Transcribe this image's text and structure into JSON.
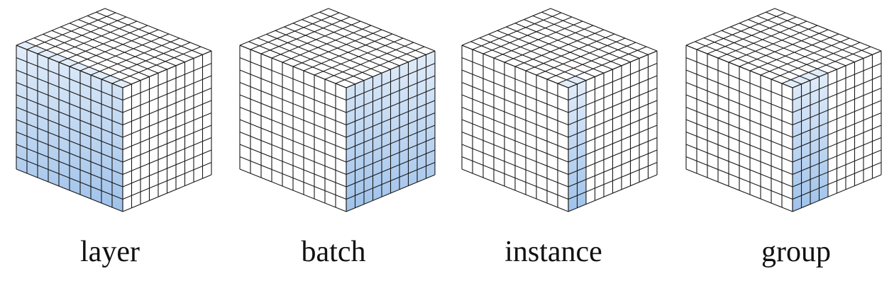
{
  "grid_size": 10,
  "colors": {
    "line": "#1a1a1a",
    "face": "#ffffff",
    "highlight_top": "#e2edfa",
    "highlight_bottom": "#9fc2ea"
  },
  "cubes": [
    {
      "label": "layer",
      "highlight": "layer"
    },
    {
      "label": "batch",
      "highlight": "batch"
    },
    {
      "label": "instance",
      "highlight": "instance"
    },
    {
      "label": "group",
      "highlight": "group"
    }
  ]
}
